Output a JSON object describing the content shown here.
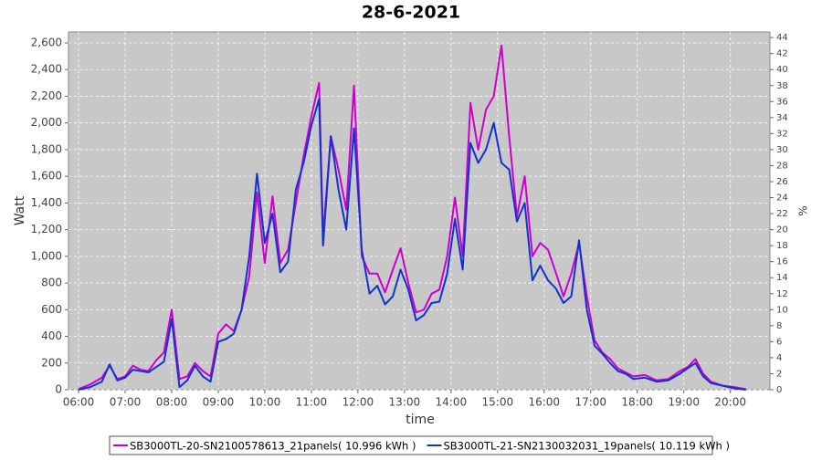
{
  "chart_data": {
    "type": "line",
    "title": "28-6-2021",
    "x_label": "time",
    "y_label": "Watt",
    "y2_label": "%",
    "x": [
      "06:00",
      "06:15",
      "06:30",
      "06:40",
      "06:50",
      "07:00",
      "07:10",
      "07:20",
      "07:30",
      "07:40",
      "07:50",
      "08:00",
      "08:10",
      "08:20",
      "08:30",
      "08:40",
      "08:50",
      "09:00",
      "09:10",
      "09:20",
      "09:30",
      "09:40",
      "09:50",
      "10:00",
      "10:10",
      "10:20",
      "10:30",
      "10:40",
      "10:50",
      "11:00",
      "11:10",
      "11:15",
      "11:25",
      "11:35",
      "11:45",
      "11:55",
      "12:05",
      "12:15",
      "12:25",
      "12:35",
      "12:45",
      "12:55",
      "13:05",
      "13:15",
      "13:25",
      "13:35",
      "13:45",
      "13:55",
      "14:05",
      "14:15",
      "14:25",
      "14:35",
      "14:45",
      "14:55",
      "15:05",
      "15:15",
      "15:25",
      "15:35",
      "15:45",
      "15:55",
      "16:05",
      "16:15",
      "16:25",
      "16:35",
      "16:45",
      "16:55",
      "17:05",
      "17:15",
      "17:25",
      "17:35",
      "17:45",
      "17:55",
      "18:10",
      "18:25",
      "18:40",
      "18:55",
      "19:05",
      "19:15",
      "19:25",
      "19:35",
      "19:50",
      "20:05",
      "20:20"
    ],
    "series": [
      {
        "name": "SB3000TL-20-SN2100578613_21panels( 10.996 kWh )",
        "color": "#cc00cc",
        "values": [
          5,
          40,
          90,
          180,
          80,
          100,
          180,
          150,
          140,
          220,
          280,
          600,
          80,
          100,
          200,
          140,
          100,
          420,
          490,
          440,
          600,
          850,
          1480,
          950,
          1450,
          950,
          1050,
          1400,
          1750,
          2050,
          2300,
          1150,
          1900,
          1650,
          1350,
          2280,
          1000,
          870,
          870,
          730,
          900,
          1060,
          800,
          580,
          600,
          720,
          750,
          1000,
          1440,
          1000,
          2150,
          1800,
          2100,
          2200,
          2580,
          1900,
          1300,
          1600,
          1000,
          1100,
          1050,
          880,
          700,
          870,
          1100,
          700,
          370,
          280,
          230,
          160,
          130,
          100,
          110,
          70,
          80,
          140,
          170,
          230,
          120,
          60,
          30,
          20,
          5
        ]
      },
      {
        "name": "SB3000TL-21-SN2130032031_19panels( 10.119 kWh )",
        "color": "#1133cc",
        "values": [
          0,
          20,
          60,
          190,
          70,
          90,
          150,
          140,
          130,
          170,
          210,
          530,
          20,
          70,
          180,
          100,
          60,
          360,
          380,
          420,
          600,
          1000,
          1620,
          1100,
          1320,
          880,
          960,
          1500,
          1700,
          1980,
          2180,
          1080,
          1900,
          1500,
          1200,
          1960,
          1050,
          720,
          780,
          640,
          700,
          900,
          750,
          520,
          560,
          650,
          660,
          870,
          1280,
          900,
          1850,
          1700,
          1800,
          2000,
          1700,
          1650,
          1260,
          1400,
          820,
          930,
          820,
          760,
          650,
          700,
          1120,
          600,
          330,
          270,
          200,
          140,
          120,
          80,
          90,
          60,
          70,
          120,
          160,
          200,
          100,
          50,
          30,
          10,
          0
        ]
      }
    ],
    "xlim": [
      "05:47",
      "20:51"
    ],
    "xticks": [
      "06:00",
      "07:00",
      "08:00",
      "09:00",
      "10:00",
      "11:00",
      "12:00",
      "13:00",
      "14:00",
      "15:00",
      "16:00",
      "17:00",
      "18:00",
      "19:00",
      "20:00"
    ],
    "ylim": [
      0,
      2682
    ],
    "yticks": [
      0,
      200,
      400,
      600,
      800,
      {
        "value": 1000,
        "label": "1,000"
      },
      {
        "value": 1200,
        "label": "1,200"
      },
      {
        "value": 1400,
        "label": "1,400"
      },
      {
        "value": 1600,
        "label": "1,600"
      },
      {
        "value": 1800,
        "label": "1,800"
      },
      {
        "value": 2000,
        "label": "2,000"
      },
      {
        "value": 2200,
        "label": "2,200"
      },
      {
        "value": 2400,
        "label": "2,400"
      },
      {
        "value": 2600,
        "label": "2,600"
      }
    ],
    "y2lim": [
      0,
      44.7
    ],
    "y2ticks": [
      0,
      2,
      4,
      6,
      8,
      10,
      12,
      14,
      16,
      18,
      20,
      22,
      24,
      26,
      28,
      30,
      32,
      34,
      36,
      38,
      40,
      42,
      44
    ],
    "grid": true
  }
}
